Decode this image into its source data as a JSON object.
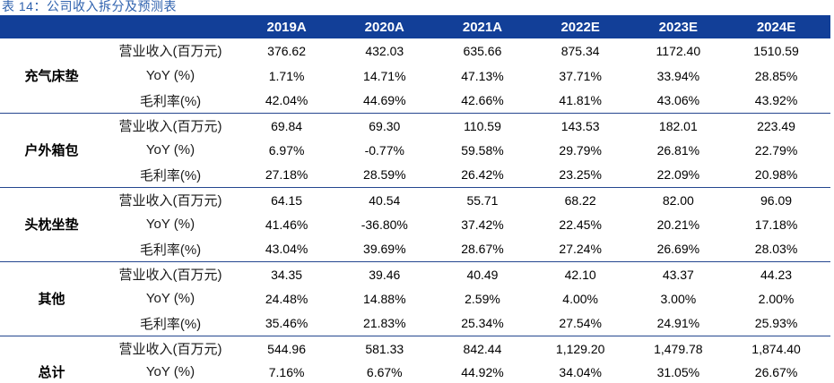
{
  "title": "表 14：公司收入拆分及预测表",
  "colors": {
    "header_bg": "#123F98",
    "title": "#2F62AE",
    "rule": "#24468F"
  },
  "columns": [
    "2019A",
    "2020A",
    "2021A",
    "2022E",
    "2023E",
    "2024E"
  ],
  "segments": [
    {
      "name": "充气床垫",
      "rows": [
        {
          "metric": "营业收入(百万元)",
          "values": [
            "376.62",
            "432.03",
            "635.66",
            "875.34",
            "1172.40",
            "1510.59"
          ]
        },
        {
          "metric": "YoY (%)",
          "values": [
            "1.71%",
            "14.71%",
            "47.13%",
            "37.71%",
            "33.94%",
            "28.85%"
          ]
        },
        {
          "metric": "毛利率(%)",
          "values": [
            "42.04%",
            "44.69%",
            "42.66%",
            "41.81%",
            "43.06%",
            "43.92%"
          ]
        }
      ]
    },
    {
      "name": "户外箱包",
      "rows": [
        {
          "metric": "营业收入(百万元)",
          "values": [
            "69.84",
            "69.30",
            "110.59",
            "143.53",
            "182.01",
            "223.49"
          ]
        },
        {
          "metric": "YoY (%)",
          "values": [
            "6.97%",
            "-0.77%",
            "59.58%",
            "29.79%",
            "26.81%",
            "22.79%"
          ]
        },
        {
          "metric": "毛利率(%)",
          "values": [
            "27.18%",
            "28.59%",
            "26.42%",
            "23.25%",
            "22.09%",
            "20.98%"
          ]
        }
      ]
    },
    {
      "name": "头枕坐垫",
      "rows": [
        {
          "metric": "营业收入(百万元)",
          "values": [
            "64.15",
            "40.54",
            "55.71",
            "68.22",
            "82.00",
            "96.09"
          ]
        },
        {
          "metric": "YoY (%)",
          "values": [
            "41.46%",
            "-36.80%",
            "37.42%",
            "22.45%",
            "20.21%",
            "17.18%"
          ]
        },
        {
          "metric": "毛利率(%)",
          "values": [
            "43.04%",
            "39.69%",
            "28.67%",
            "27.24%",
            "26.69%",
            "28.03%"
          ]
        }
      ]
    },
    {
      "name": "其他",
      "rows": [
        {
          "metric": "营业收入(百万元)",
          "values": [
            "34.35",
            "39.46",
            "40.49",
            "42.10",
            "43.37",
            "44.23"
          ]
        },
        {
          "metric": "YoY (%)",
          "values": [
            "24.48%",
            "14.88%",
            "2.59%",
            "4.00%",
            "3.00%",
            "2.00%"
          ]
        },
        {
          "metric": "毛利率(%)",
          "values": [
            "35.46%",
            "21.83%",
            "25.34%",
            "27.54%",
            "24.91%",
            "25.93%"
          ]
        }
      ]
    },
    {
      "name": "总计",
      "rows": [
        {
          "metric": "营业收入(百万元)",
          "values": [
            "544.96",
            "581.33",
            "842.44",
            "1,129.20",
            "1,479.78",
            "1,874.40"
          ]
        },
        {
          "metric": "YoY (%)",
          "values": [
            "7.16%",
            "6.67%",
            "44.92%",
            "34.04%",
            "31.05%",
            "26.67%"
          ]
        }
      ]
    }
  ]
}
